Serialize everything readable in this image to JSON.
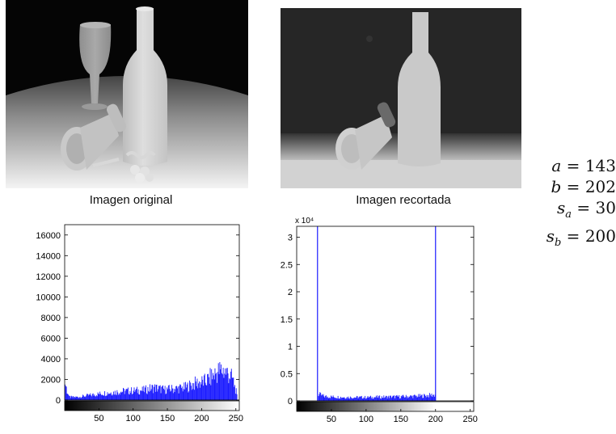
{
  "captions": {
    "original": "Imagen original",
    "cropped": "Imagen recortada"
  },
  "parameters": [
    {
      "symbol": "a",
      "sub": "",
      "value": "143"
    },
    {
      "symbol": "b",
      "sub": "",
      "value": "202"
    },
    {
      "symbol": "s",
      "sub": "a",
      "value": "30"
    },
    {
      "symbol": "s",
      "sub": "b",
      "value": "200"
    }
  ],
  "colors": {
    "histogram": "#1a1aff",
    "axis": "#000000"
  },
  "chart_data": [
    {
      "type": "bar",
      "xlim": [
        0,
        255
      ],
      "ylim": [
        0,
        17000
      ],
      "xticks": [
        50,
        100,
        150,
        200,
        250
      ],
      "yticks": [
        0,
        2000,
        4000,
        6000,
        8000,
        10000,
        12000,
        14000,
        16000
      ],
      "exponent_label": "",
      "profile": [
        [
          0,
          1700
        ],
        [
          3,
          900
        ],
        [
          6,
          300
        ],
        [
          12,
          280
        ],
        [
          20,
          300
        ],
        [
          30,
          400
        ],
        [
          40,
          500
        ],
        [
          55,
          650
        ],
        [
          70,
          750
        ],
        [
          85,
          850
        ],
        [
          100,
          900
        ],
        [
          115,
          950
        ],
        [
          130,
          1200
        ],
        [
          145,
          1000
        ],
        [
          160,
          1100
        ],
        [
          175,
          1200
        ],
        [
          190,
          1600
        ],
        [
          205,
          1800
        ],
        [
          215,
          2300
        ],
        [
          222,
          2700
        ],
        [
          230,
          2900
        ],
        [
          238,
          2600
        ],
        [
          245,
          2000
        ],
        [
          250,
          800
        ],
        [
          252,
          0
        ]
      ]
    },
    {
      "type": "bar",
      "xlim": [
        0,
        255
      ],
      "ylim": [
        0,
        32000
      ],
      "xticks": [
        50,
        100,
        150,
        200,
        250
      ],
      "yticks": [
        0,
        0.5,
        1,
        1.5,
        2,
        2.5,
        3
      ],
      "exponent_label": "x 10⁴",
      "spikes": [
        [
          30,
          32000
        ],
        [
          200,
          32000
        ]
      ],
      "profile": [
        [
          31,
          1200
        ],
        [
          40,
          800
        ],
        [
          60,
          700
        ],
        [
          80,
          650
        ],
        [
          100,
          650
        ],
        [
          120,
          700
        ],
        [
          140,
          750
        ],
        [
          160,
          800
        ],
        [
          180,
          900
        ],
        [
          199,
          1100
        ]
      ]
    }
  ]
}
